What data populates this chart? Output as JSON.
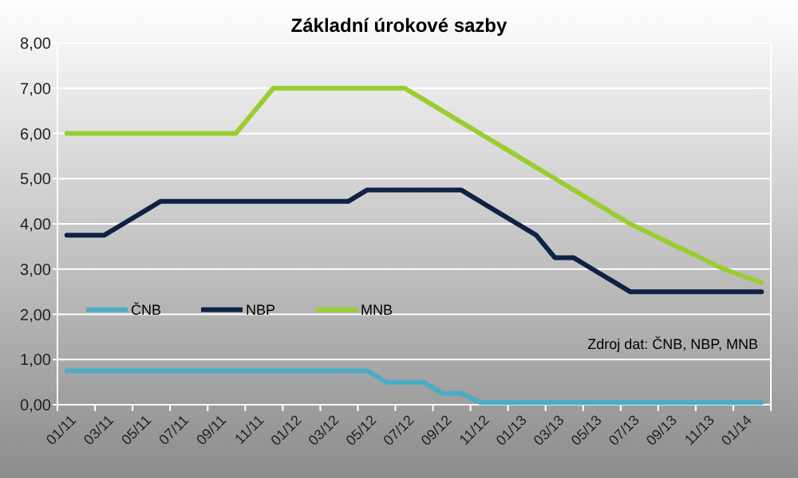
{
  "chart_data": {
    "type": "line",
    "title": "Základní úrokové sazby",
    "categories": [
      "01/11",
      null,
      "03/11",
      null,
      "05/11",
      null,
      "07/11",
      null,
      "09/11",
      null,
      "11/11",
      null,
      "01/12",
      null,
      "03/12",
      null,
      "05/12",
      null,
      "07/12",
      null,
      "09/12",
      null,
      "11/12",
      null,
      "01/13",
      null,
      "03/13",
      null,
      "05/13",
      null,
      "07/13",
      null,
      "09/13",
      null,
      "11/13",
      null,
      "01/14",
      null
    ],
    "series": [
      {
        "name": "ČNB",
        "color": "#4bacc6",
        "values": [
          0.75,
          0.75,
          0.75,
          0.75,
          0.75,
          0.75,
          0.75,
          0.75,
          0.75,
          0.75,
          0.75,
          0.75,
          0.75,
          0.75,
          0.75,
          0.75,
          0.75,
          0.5,
          0.5,
          0.5,
          0.25,
          0.25,
          0.05,
          0.05,
          0.05,
          0.05,
          0.05,
          0.05,
          0.05,
          0.05,
          0.05,
          0.05,
          0.05,
          0.05,
          0.05,
          0.05,
          0.05,
          0.05
        ]
      },
      {
        "name": "NBP",
        "color": "#0f2145",
        "values": [
          3.75,
          3.75,
          3.75,
          4.0,
          4.25,
          4.5,
          4.5,
          4.5,
          4.5,
          4.5,
          4.5,
          4.5,
          4.5,
          4.5,
          4.5,
          4.5,
          4.75,
          4.75,
          4.75,
          4.75,
          4.75,
          4.75,
          4.5,
          4.25,
          4.0,
          3.75,
          3.25,
          3.25,
          3.0,
          2.75,
          2.5,
          2.5,
          2.5,
          2.5,
          2.5,
          2.5,
          2.5,
          2.5
        ]
      },
      {
        "name": "MNB",
        "color": "#9acd32",
        "values": [
          6.0,
          6.0,
          6.0,
          6.0,
          6.0,
          6.0,
          6.0,
          6.0,
          6.0,
          6.0,
          6.5,
          7.0,
          7.0,
          7.0,
          7.0,
          7.0,
          7.0,
          7.0,
          7.0,
          6.75,
          6.5,
          6.25,
          6.0,
          5.75,
          5.5,
          5.25,
          5.0,
          4.75,
          4.5,
          4.25,
          4.0,
          3.8,
          3.6,
          3.4,
          3.2,
          3.0,
          2.85,
          2.7
        ]
      }
    ],
    "ylim": [
      0,
      8
    ],
    "yticks": [
      {
        "value": 0,
        "label": "0,00"
      },
      {
        "value": 1,
        "label": "1,00"
      },
      {
        "value": 2,
        "label": "2,00"
      },
      {
        "value": 3,
        "label": "3,00"
      },
      {
        "value": 4,
        "label": "4,00"
      },
      {
        "value": 5,
        "label": "5,00"
      },
      {
        "value": 6,
        "label": "6,00"
      },
      {
        "value": 7,
        "label": "7,00"
      },
      {
        "value": 8,
        "label": "8,00"
      }
    ],
    "grid": "y",
    "legend": "left",
    "marker": "none",
    "line_style": "solid",
    "annotations": [
      "Zdroj dat: ČNB, NBP, MNB"
    ]
  }
}
